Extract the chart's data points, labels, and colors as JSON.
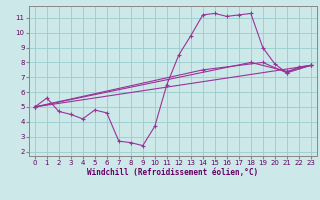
{
  "xlabel": "Windchill (Refroidissement éolien,°C)",
  "line_color": "#993399",
  "background_color": "#cce8e8",
  "grid_color": "#99cccc",
  "xlim": [
    -0.5,
    23.5
  ],
  "ylim": [
    1.7,
    11.8
  ],
  "xticks": [
    0,
    1,
    2,
    3,
    4,
    5,
    6,
    7,
    8,
    9,
    10,
    11,
    12,
    13,
    14,
    15,
    16,
    17,
    18,
    19,
    20,
    21,
    22,
    23
  ],
  "yticks": [
    2,
    3,
    4,
    5,
    6,
    7,
    8,
    9,
    10,
    11
  ],
  "main_x": [
    0,
    1,
    2,
    3,
    4,
    5,
    6,
    7,
    8,
    9,
    10,
    11,
    12,
    13,
    14,
    15,
    16,
    17,
    18,
    19,
    20,
    21,
    22,
    23
  ],
  "main_y": [
    5.0,
    5.6,
    4.7,
    4.5,
    4.2,
    4.8,
    4.6,
    2.7,
    2.6,
    2.4,
    3.7,
    6.5,
    8.5,
    9.8,
    11.2,
    11.3,
    11.1,
    11.2,
    11.3,
    9.0,
    7.9,
    7.3,
    7.7,
    7.8
  ],
  "line2_x": [
    0,
    23
  ],
  "line2_y": [
    5.0,
    7.8
  ],
  "line3_x": [
    0,
    14,
    19,
    21,
    23
  ],
  "line3_y": [
    5.0,
    7.5,
    8.0,
    7.3,
    7.8
  ],
  "line4_x": [
    0,
    18,
    21,
    23
  ],
  "line4_y": [
    5.0,
    8.0,
    7.4,
    7.8
  ]
}
